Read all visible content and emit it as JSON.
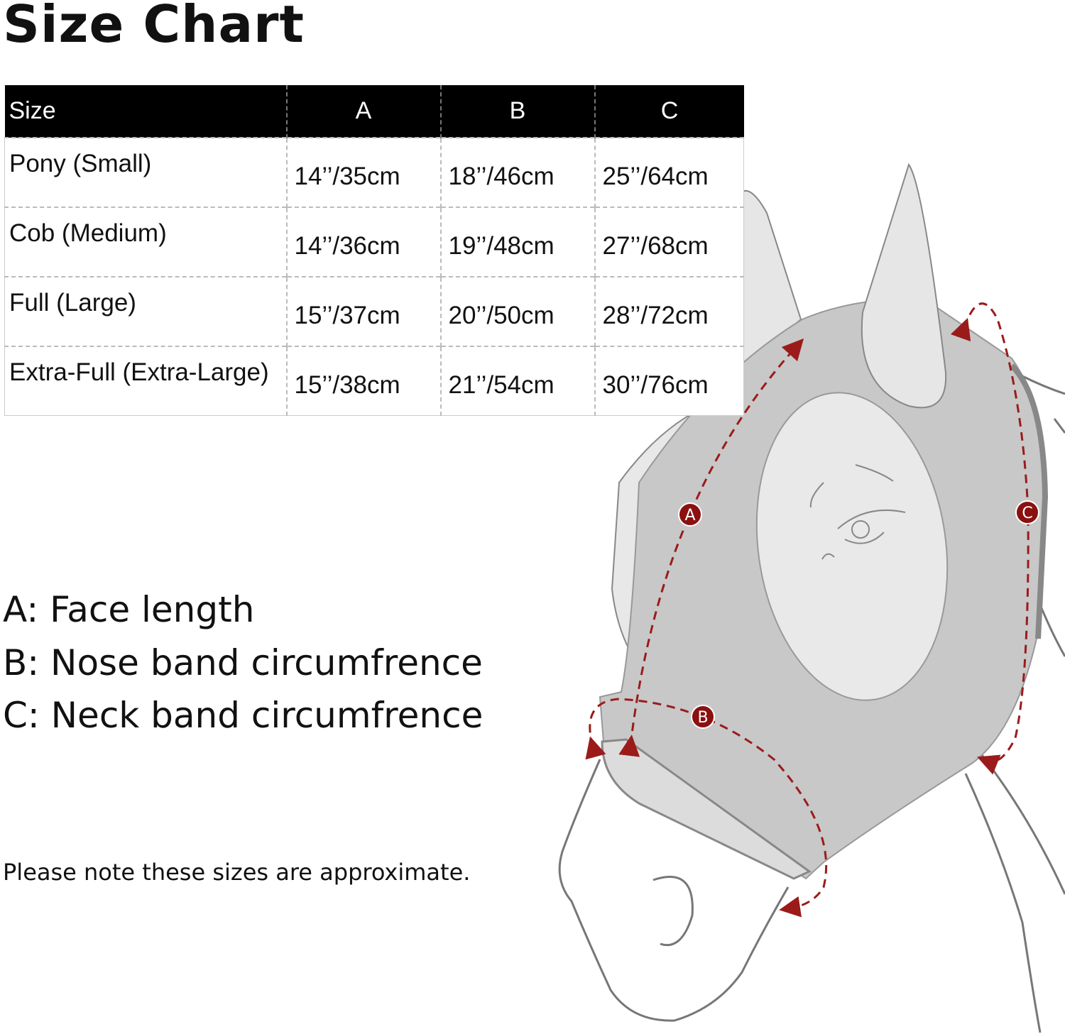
{
  "title": "Size Chart",
  "table": {
    "headers": [
      "Size",
      "A",
      "B",
      "C"
    ],
    "rows": [
      [
        "Pony (Small)",
        "14’’/35cm",
        "18’’/46cm",
        "25’’/64cm"
      ],
      [
        "Cob (Medium)",
        "14’’/36cm",
        "19’’/48cm",
        "27’’/68cm"
      ],
      [
        "Full (Large)",
        "15’’/37cm",
        "20’’/50cm",
        "28’’/72cm"
      ],
      [
        "Extra-Full (Extra-Large)",
        "15’’/38cm",
        "21’’/54cm",
        "30’’/76cm"
      ]
    ]
  },
  "legend": [
    "A: Face length",
    "B: Nose band circumfrence",
    "C: Neck band circumfrence"
  ],
  "note": "Please note these sizes are approximate.",
  "diagram": {
    "labels": {
      "a": "A",
      "b": "B",
      "c": "C"
    },
    "colors": {
      "measure_line": "#9b1b1b",
      "mask": "#c8c8c8",
      "header_bg": "#000000"
    }
  }
}
